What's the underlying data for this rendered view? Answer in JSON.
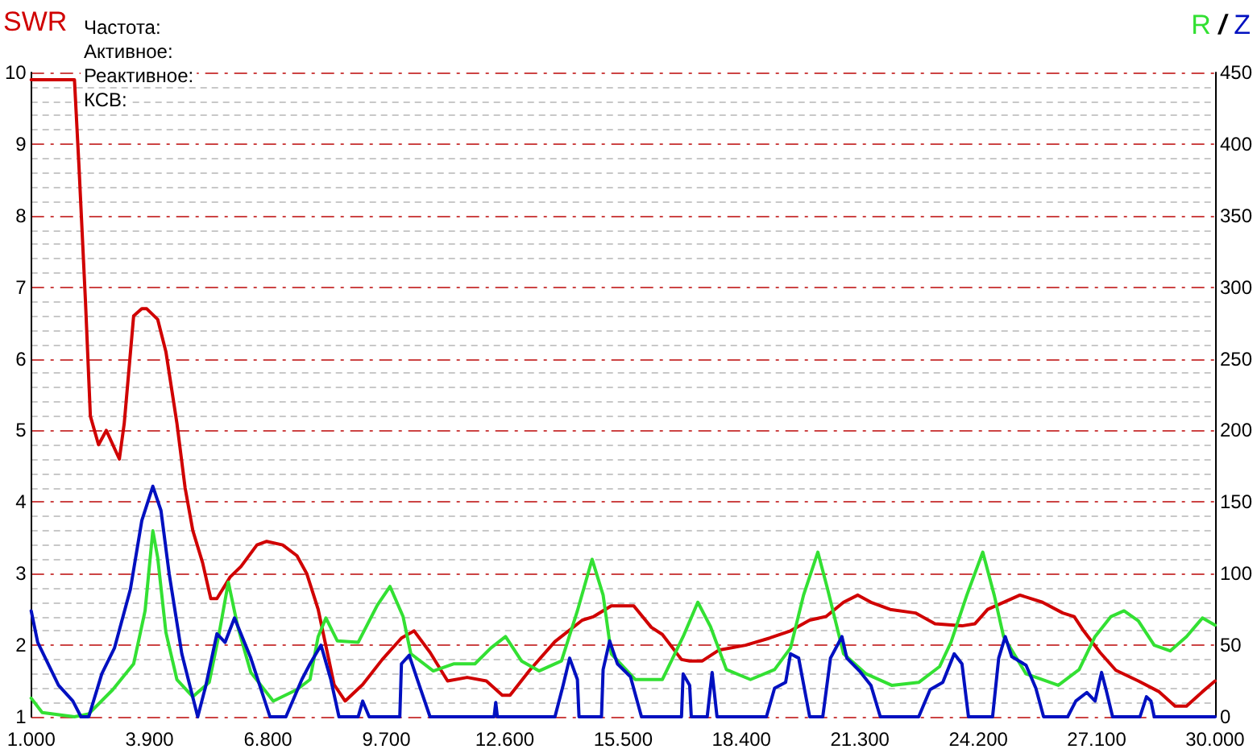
{
  "chart_data": {
    "type": "line",
    "ylabel": "SWR",
    "y2label": "R / Z",
    "annotations": [
      "Частота:",
      "Активное:",
      "Реактивное:",
      "КСВ:"
    ],
    "xlim": [
      1000,
      30000
    ],
    "xticks": [
      {
        "value": 1000,
        "label": "1.000"
      },
      {
        "value": 3900,
        "label": "3.900"
      },
      {
        "value": 6800,
        "label": "6.800"
      },
      {
        "value": 9700,
        "label": "9.700"
      },
      {
        "value": 12600,
        "label": "12.600"
      },
      {
        "value": 15500,
        "label": "15.500"
      },
      {
        "value": 18400,
        "label": "18.400"
      },
      {
        "value": 21300,
        "label": "21.300"
      },
      {
        "value": 24200,
        "label": "24.200"
      },
      {
        "value": 27100,
        "label": "27.100"
      },
      {
        "value": 30000,
        "label": "30.000"
      }
    ],
    "ylim": [
      1,
      10
    ],
    "yticks": [
      1,
      2,
      3,
      4,
      5,
      6,
      7,
      8,
      9,
      10
    ],
    "y2lim": [
      0,
      450
    ],
    "y2ticks": [
      0,
      50,
      100,
      150,
      200,
      250,
      300,
      350,
      400,
      450
    ],
    "grid": "y",
    "series": [
      {
        "color": "#d00000",
        "x": [
          1000,
          2060,
          2170,
          2330,
          2450,
          2650,
          2840,
          3160,
          3280,
          3510,
          3710,
          3830,
          4100,
          4300,
          4570,
          4770,
          4960,
          5200,
          5400,
          5550,
          5870,
          6140,
          6530,
          6770,
          7160,
          7510,
          7750,
          8030,
          8420,
          8690,
          9120,
          9600,
          10070,
          10380,
          10770,
          11200,
          11680,
          12150,
          12540,
          12730,
          13210,
          13830,
          14500,
          14780,
          15210,
          15760,
          16190,
          16460,
          16930,
          17130,
          17440,
          17840,
          18500,
          19090,
          19600,
          20070,
          20470,
          20900,
          21250,
          21570,
          22040,
          22660,
          23140,
          23800,
          24120,
          24430,
          25220,
          25770,
          26270,
          26550,
          26780,
          27180,
          27570,
          28120,
          28630,
          29020,
          29300,
          29690,
          30000
        ],
        "values": [
          9.9,
          9.9,
          8.7,
          6.8,
          5.2,
          4.8,
          5.0,
          4.6,
          5.1,
          6.6,
          6.7,
          6.7,
          6.55,
          6.1,
          5.1,
          4.2,
          3.6,
          3.15,
          2.65,
          2.65,
          2.95,
          3.1,
          3.4,
          3.45,
          3.4,
          3.25,
          3.0,
          2.5,
          1.45,
          1.22,
          1.45,
          1.8,
          2.1,
          2.2,
          1.9,
          1.5,
          1.55,
          1.5,
          1.3,
          1.3,
          1.65,
          2.05,
          2.35,
          2.4,
          2.55,
          2.55,
          2.25,
          2.15,
          1.8,
          1.78,
          1.78,
          1.93,
          2.0,
          2.1,
          2.2,
          2.35,
          2.4,
          2.6,
          2.7,
          2.6,
          2.5,
          2.45,
          2.3,
          2.27,
          2.3,
          2.5,
          2.7,
          2.6,
          2.45,
          2.4,
          2.2,
          1.9,
          1.65,
          1.5,
          1.35,
          1.15,
          1.15,
          1.35,
          1.5
        ]
      },
      {
        "color": "#33e033",
        "axis": "y2",
        "x": [
          1000,
          1270,
          2060,
          2410,
          3000,
          3510,
          3790,
          3980,
          4100,
          4300,
          4570,
          4960,
          5360,
          5590,
          5830,
          6060,
          6380,
          6930,
          7510,
          7830,
          8030,
          8220,
          8500,
          9010,
          9480,
          9790,
          10110,
          10300,
          10850,
          11360,
          11870,
          12260,
          12620,
          13010,
          13440,
          13990,
          14380,
          14740,
          15010,
          15210,
          15800,
          16460,
          16970,
          17330,
          17640,
          18030,
          18620,
          19210,
          19600,
          19920,
          20270,
          20510,
          20900,
          21450,
          22080,
          22740,
          23250,
          23530,
          23920,
          24310,
          24590,
          24820,
          25370,
          26160,
          26670,
          27060,
          27450,
          27770,
          28120,
          28510,
          28900,
          29300,
          29690,
          30000
        ],
        "values": [
          13,
          3,
          0,
          2,
          19,
          37,
          74,
          130,
          111,
          59,
          26,
          14,
          24,
          56,
          94,
          63,
          31,
          11,
          19,
          26,
          56,
          69,
          53,
          52,
          78,
          91,
          70,
          44,
          32,
          37,
          37,
          48,
          56,
          39,
          32,
          39,
          74,
          110,
          85,
          44,
          26,
          26,
          56,
          80,
          63,
          33,
          26,
          33,
          48,
          85,
          115,
          89,
          44,
          30,
          22,
          24,
          35,
          52,
          85,
          115,
          85,
          56,
          30,
          22,
          33,
          56,
          70,
          74,
          67,
          50,
          46,
          56,
          69,
          64
        ]
      },
      {
        "color": "#0010c0",
        "axis": "y2",
        "x": [
          1000,
          1160,
          1670,
          2020,
          2220,
          2410,
          2730,
          3040,
          3430,
          3710,
          3980,
          4180,
          4380,
          4690,
          5080,
          5280,
          5550,
          5750,
          5980,
          6380,
          6850,
          7240,
          7630,
          7830,
          8100,
          8340,
          8540,
          9010,
          9120,
          9280,
          10030,
          10070,
          10260,
          10460,
          10770,
          12340,
          12380,
          12420,
          13830,
          14030,
          14190,
          14380,
          14420,
          14970,
          15010,
          15170,
          15360,
          15680,
          15950,
          16930,
          16970,
          17130,
          17170,
          17560,
          17680,
          17800,
          19010,
          19210,
          19480,
          19600,
          19800,
          20070,
          20390,
          20580,
          20860,
          20980,
          21290,
          21570,
          21800,
          22740,
          23020,
          23330,
          23610,
          23800,
          23960,
          24550,
          24700,
          24860,
          25020,
          25370,
          25610,
          25800,
          26390,
          26590,
          26860,
          27060,
          27220,
          27330,
          27490,
          28160,
          28320,
          28430,
          28510,
          30000
        ],
        "values": [
          74,
          52,
          22,
          11,
          0,
          0,
          30,
          48,
          89,
          137,
          161,
          144,
          100,
          44,
          0,
          22,
          58,
          52,
          69,
          41,
          0,
          0,
          26,
          37,
          50,
          26,
          0,
          0,
          11,
          0,
          0,
          37,
          43,
          26,
          0,
          0,
          10,
          0,
          0,
          22,
          41,
          26,
          0,
          0,
          33,
          53,
          37,
          28,
          0,
          0,
          30,
          22,
          0,
          0,
          31,
          0,
          0,
          20,
          24,
          44,
          41,
          0,
          0,
          41,
          56,
          41,
          32,
          22,
          0,
          0,
          19,
          24,
          44,
          37,
          0,
          0,
          41,
          56,
          42,
          36,
          20,
          0,
          0,
          11,
          17,
          11,
          31,
          19,
          0,
          0,
          14,
          11,
          0,
          0
        ]
      }
    ]
  }
}
